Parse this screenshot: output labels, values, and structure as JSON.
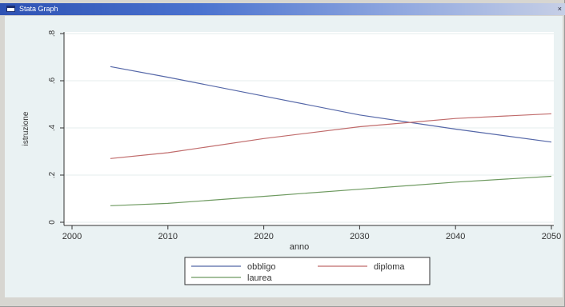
{
  "window": {
    "title": "Stata Graph"
  },
  "icons": {
    "window": "window-icon",
    "close": "close-icon"
  },
  "chart_data": {
    "type": "line",
    "xlabel": "anno",
    "ylabel": "istruzione",
    "xlim": [
      2000,
      2050
    ],
    "ylim": [
      0,
      0.8
    ],
    "x_ticks": [
      2000,
      2010,
      2020,
      2030,
      2040,
      2050
    ],
    "x_tick_labels": [
      "2000",
      "2010",
      "2020",
      "2030",
      "2040",
      "2050"
    ],
    "y_ticks": [
      0,
      0.2,
      0.4,
      0.6,
      0.8
    ],
    "y_tick_labels": [
      "0",
      ".2",
      ".4",
      ".6",
      ".8"
    ],
    "grid": true,
    "legend_position": "bottom-center",
    "series": [
      {
        "name": "obbligo",
        "color": "#5567a8",
        "x": [
          2004,
          2010,
          2020,
          2030,
          2040,
          2050
        ],
        "y": [
          0.66,
          0.615,
          0.535,
          0.455,
          0.395,
          0.34
        ]
      },
      {
        "name": "diploma",
        "color": "#c06b6b",
        "x": [
          2004,
          2010,
          2020,
          2030,
          2040,
          2050
        ],
        "y": [
          0.27,
          0.295,
          0.355,
          0.405,
          0.44,
          0.46
        ]
      },
      {
        "name": "laurea",
        "color": "#6e9a60",
        "x": [
          2004,
          2010,
          2020,
          2030,
          2040,
          2050
        ],
        "y": [
          0.07,
          0.08,
          0.11,
          0.14,
          0.17,
          0.195
        ]
      }
    ]
  }
}
